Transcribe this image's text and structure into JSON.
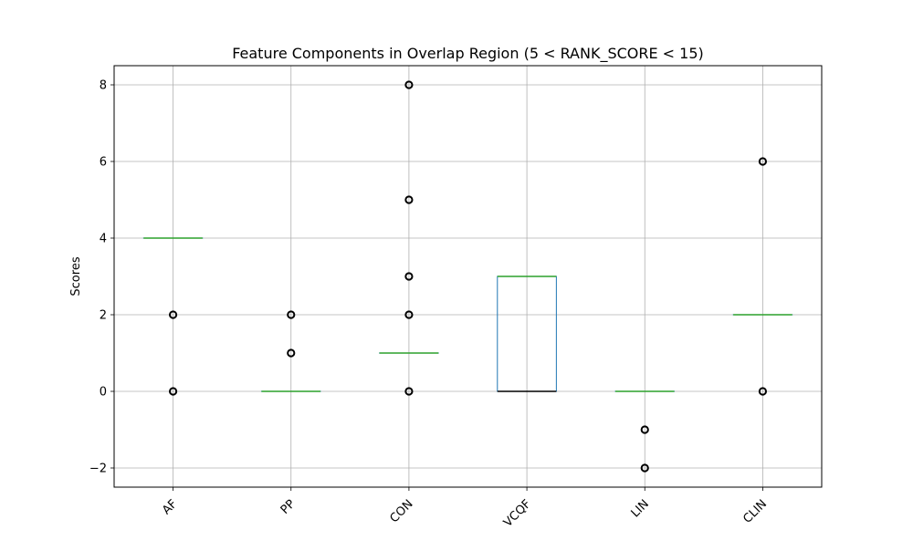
{
  "chart_data": {
    "type": "box",
    "title": "Feature Components in Overlap Region (5 < RANK_SCORE < 15)",
    "xlabel": "",
    "ylabel": "Scores",
    "ylim": [
      -2.5,
      8.5
    ],
    "yticks": [
      -2,
      0,
      2,
      4,
      6,
      8
    ],
    "ytick_labels": [
      "−2",
      "0",
      "2",
      "4",
      "6",
      "8"
    ],
    "grid": true,
    "categories": [
      "AF",
      "PP",
      "CON",
      "VCQF",
      "LIN",
      "CLIN"
    ],
    "boxes": [
      {
        "q1": 4,
        "median": 4,
        "q3": 4,
        "whisker_low": 4,
        "whisker_high": 4,
        "outliers": [
          2,
          0
        ]
      },
      {
        "q1": 0,
        "median": 0,
        "q3": 0,
        "whisker_low": 0,
        "whisker_high": 0,
        "outliers": [
          2,
          1
        ]
      },
      {
        "q1": 1,
        "median": 1,
        "q3": 1,
        "whisker_low": 1,
        "whisker_high": 1,
        "outliers": [
          8,
          5,
          3,
          2,
          0
        ]
      },
      {
        "q1": 0,
        "median": 0,
        "q3": 3,
        "whisker_low": 0,
        "whisker_high": 3,
        "outliers": []
      },
      {
        "q1": 0,
        "median": 0,
        "q3": 0,
        "whisker_low": 0,
        "whisker_high": 0,
        "outliers": [
          -1,
          -2
        ]
      },
      {
        "q1": 2,
        "median": 2,
        "q3": 2,
        "whisker_low": 2,
        "whisker_high": 2,
        "outliers": [
          6,
          0
        ]
      }
    ],
    "colors": {
      "box": "#1f77b4",
      "median": "#2ca02c",
      "median_emphasis": "#000000",
      "grid": "#b0b0b0",
      "outlier": "#000000"
    }
  }
}
